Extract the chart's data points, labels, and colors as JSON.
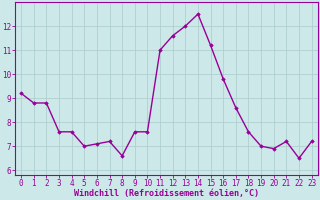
{
  "x": [
    0,
    1,
    2,
    3,
    4,
    5,
    6,
    7,
    8,
    9,
    10,
    11,
    12,
    13,
    14,
    15,
    16,
    17,
    18,
    19,
    20,
    21,
    22,
    23
  ],
  "y": [
    9.2,
    8.8,
    8.8,
    7.6,
    7.6,
    7.0,
    7.1,
    7.2,
    6.6,
    7.6,
    7.6,
    11.0,
    11.6,
    12.0,
    12.5,
    11.2,
    9.8,
    8.6,
    7.6,
    7.0,
    6.9,
    7.2,
    6.5,
    7.2
  ],
  "line_color": "#990099",
  "marker": "D",
  "marker_size": 1.8,
  "bg_color": "#cce8e8",
  "grid_color": "#aacccc",
  "xlabel": "Windchill (Refroidissement éolien,°C)",
  "xlabel_color": "#990099",
  "tick_color": "#990099",
  "axis_color": "#990099",
  "ylim": [
    5.8,
    13.0
  ],
  "yticks": [
    6,
    7,
    8,
    9,
    10,
    11,
    12
  ],
  "xlim": [
    -0.5,
    23.5
  ],
  "line_width": 1.0,
  "tick_fontsize": 5.5,
  "xlabel_fontsize": 6.0
}
